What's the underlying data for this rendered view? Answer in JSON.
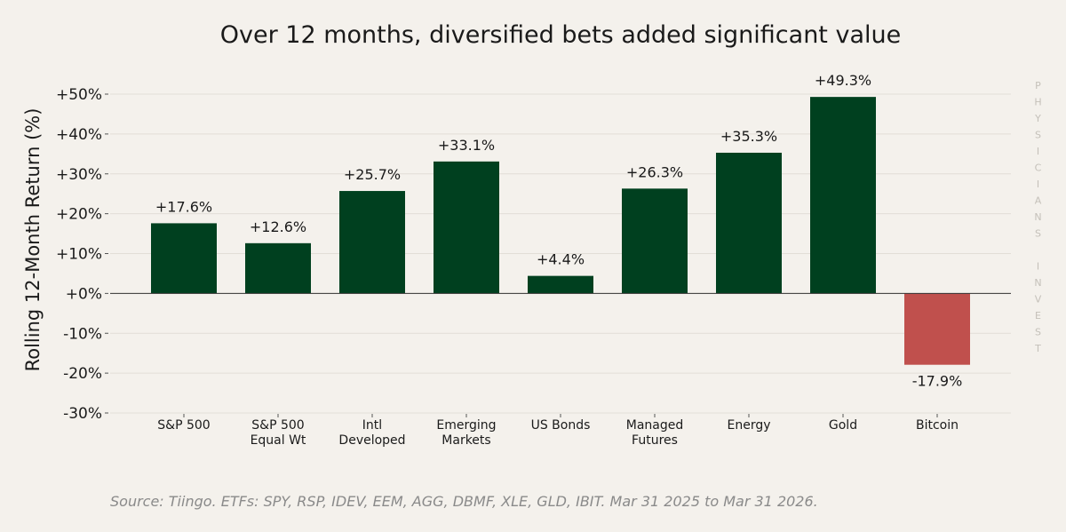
{
  "chart_data": {
    "type": "bar",
    "title": "Over 12 months, diversified bets added significant value",
    "ylabel": "Rolling 12-Month Return (%)",
    "xlabel": "",
    "categories": [
      [
        "S&P 500"
      ],
      [
        "S&P 500",
        "Equal Wt"
      ],
      [
        "Intl",
        "Developed"
      ],
      [
        "Emerging",
        "Markets"
      ],
      [
        "US Bonds"
      ],
      [
        "Managed",
        "Futures"
      ],
      [
        "Energy"
      ],
      [
        "Gold"
      ],
      [
        "Bitcoin"
      ]
    ],
    "values": [
      17.6,
      12.6,
      25.7,
      33.1,
      4.4,
      26.3,
      35.3,
      49.3,
      -17.9
    ],
    "data_labels": [
      "+17.6%",
      "+12.6%",
      "+25.7%",
      "+33.1%",
      "+4.4%",
      "+26.3%",
      "+35.3%",
      "+49.3%",
      "-17.9%"
    ],
    "ylim": [
      -30,
      50
    ],
    "yticks": [
      -30,
      -20,
      -10,
      0,
      10,
      20,
      30,
      40,
      50
    ],
    "ytick_labels": [
      "-30%",
      "-20%",
      "-10%",
      "+0%",
      "+10%",
      "+20%",
      "+30%",
      "+40%",
      "+50%"
    ],
    "grid": "horizontal",
    "colors": {
      "positive": "#00401f",
      "negative": "#c0504d",
      "grid": "#e2ded7",
      "zero_line": "#333333"
    },
    "source": "Source: Tiingo. ETFs: SPY, RSP, IDEV, EEM, AGG, DBMF, XLE, GLD, IBIT. Mar 31 2025 to Mar 31 2026.",
    "watermark": "PHYSICIANS INVEST"
  }
}
